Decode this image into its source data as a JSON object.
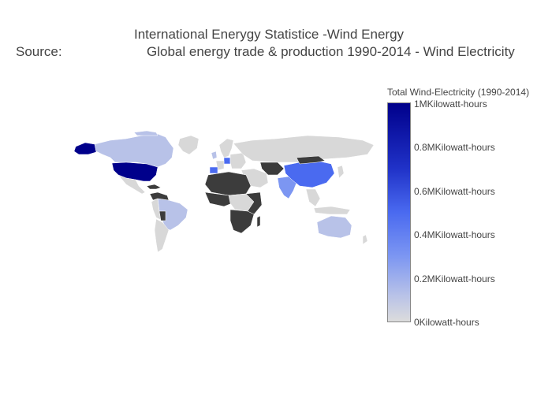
{
  "title": {
    "line1": "International Enerygy Statistice -Wind Energy",
    "line2_prefix": "Source:",
    "line2_main": "Global energy trade & production 1990-2014 - Wind Electricity"
  },
  "colorbar": {
    "title": "Total Wind-Electricity (1990-2014)",
    "ticks": [
      "1MKilowatt-hours",
      "0.8MKilowatt-hours",
      "0.6MKilowatt-hours",
      "0.4MKilowatt-hours",
      "0.2MKilowatt-hours",
      "0Kilowatt-hours"
    ],
    "colorscale": [
      "#00008b",
      "#2032c8",
      "#4a6af0",
      "#7c96f2",
      "#b8c2e8",
      "#dcdcdc"
    ]
  },
  "colors": {
    "no_data": "#3c3c3c",
    "land": "#d8d8d8",
    "border": "#ffffff"
  },
  "chart_data": {
    "type": "choropleth",
    "title": "International Enerygy Statistice -Wind Energy",
    "subtitle": "Source: Global energy trade & production 1990-2014 - Wind Electricity",
    "colorbar_title": "Total Wind-Electricity (1990-2014)",
    "colorscale_range": [
      0,
      1000000
    ],
    "unit": "Kilowatt-hours",
    "values": [
      {
        "region": "United States",
        "value": 950000
      },
      {
        "region": "China",
        "value": 520000
      },
      {
        "region": "Germany",
        "value": 480000
      },
      {
        "region": "Spain",
        "value": 400000
      },
      {
        "region": "India",
        "value": 250000
      },
      {
        "region": "Alaska",
        "value": 950000
      },
      {
        "region": "Canada",
        "value": 70000
      },
      {
        "region": "Australia",
        "value": 60000
      },
      {
        "region": "Brazil",
        "value": 30000
      }
    ]
  }
}
